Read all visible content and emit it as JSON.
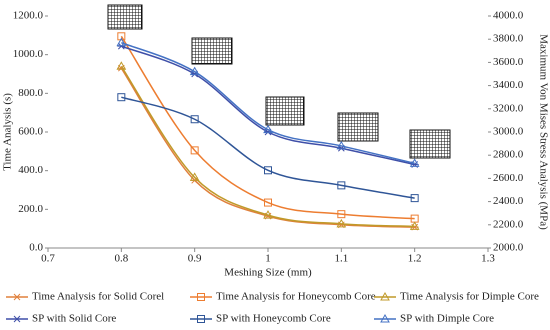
{
  "chart_data": {
    "type": "line",
    "x_label": "Meshing Size (mm)",
    "y_label": "Time Analysis (s)",
    "y2_label": "Maximum Von Mises Stress Analysis (MPa)",
    "x": [
      0.8,
      0.9,
      1.0,
      1.1,
      1.2
    ],
    "xlim": [
      0.7,
      1.3
    ],
    "xticks": [
      0.7,
      0.8,
      0.9,
      1.0,
      1.1,
      1.2,
      1.3
    ],
    "ylim": [
      0,
      1200
    ],
    "yticks": [
      {
        "value": 0,
        "label": "0.0"
      },
      {
        "value": 200,
        "label": "200.0"
      },
      {
        "value": 400,
        "label": "400.0"
      },
      {
        "value": 600,
        "label": "600.0"
      },
      {
        "value": 800,
        "label": "800.0"
      },
      {
        "value": 1000,
        "label": "1000.0"
      },
      {
        "value": 1200,
        "label": "1200.0"
      }
    ],
    "y2lim": [
      2000,
      4000
    ],
    "y2ticks": [
      {
        "value": 2000,
        "label": "2000.0"
      },
      {
        "value": 2200,
        "label": "2200.0"
      },
      {
        "value": 2400,
        "label": "2400.0"
      },
      {
        "value": 2600,
        "label": "2600.0"
      },
      {
        "value": 2800,
        "label": "2800.0"
      },
      {
        "value": 3000,
        "label": "3000.0"
      },
      {
        "value": 3200,
        "label": "3200.0"
      },
      {
        "value": 3400,
        "label": "3400.0"
      },
      {
        "value": 3600,
        "label": "3600.0"
      },
      {
        "value": 3800,
        "label": "3800.0"
      },
      {
        "value": 4000,
        "label": "4000.0"
      }
    ],
    "legend": "bottom",
    "series": [
      {
        "name": "Time Analysis for Solid Corel",
        "color": "#e0803c",
        "marker": "star",
        "values": [
          930,
          350,
          165,
          120,
          108
        ]
      },
      {
        "name": "Time Analysis for Honeycomb Core",
        "color": "#ed7d31",
        "marker": "square",
        "values": [
          1095,
          505,
          235,
          175,
          152
        ]
      },
      {
        "name": "Time Analysis for Dimple Core",
        "color": "#c09a2a",
        "marker": "triangle",
        "values": [
          940,
          365,
          170,
          125,
          112
        ]
      },
      {
        "name": "SP with Solid Core",
        "color": "#3f4fa8",
        "marker": "star",
        "axis": "y2",
        "values": [
          3740,
          3500,
          3000,
          2860,
          2720
        ]
      },
      {
        "name": "SP with Honeycomb Core",
        "color": "#2f5597",
        "marker": "square",
        "axis": "y2",
        "values": [
          3300,
          3110,
          2670,
          2540,
          2430
        ]
      },
      {
        "name": "SP with Dimple Core",
        "color": "#4472c4",
        "marker": "triangle",
        "axis": "y2",
        "values": [
          3770,
          3520,
          3020,
          2880,
          2730
        ]
      }
    ]
  }
}
